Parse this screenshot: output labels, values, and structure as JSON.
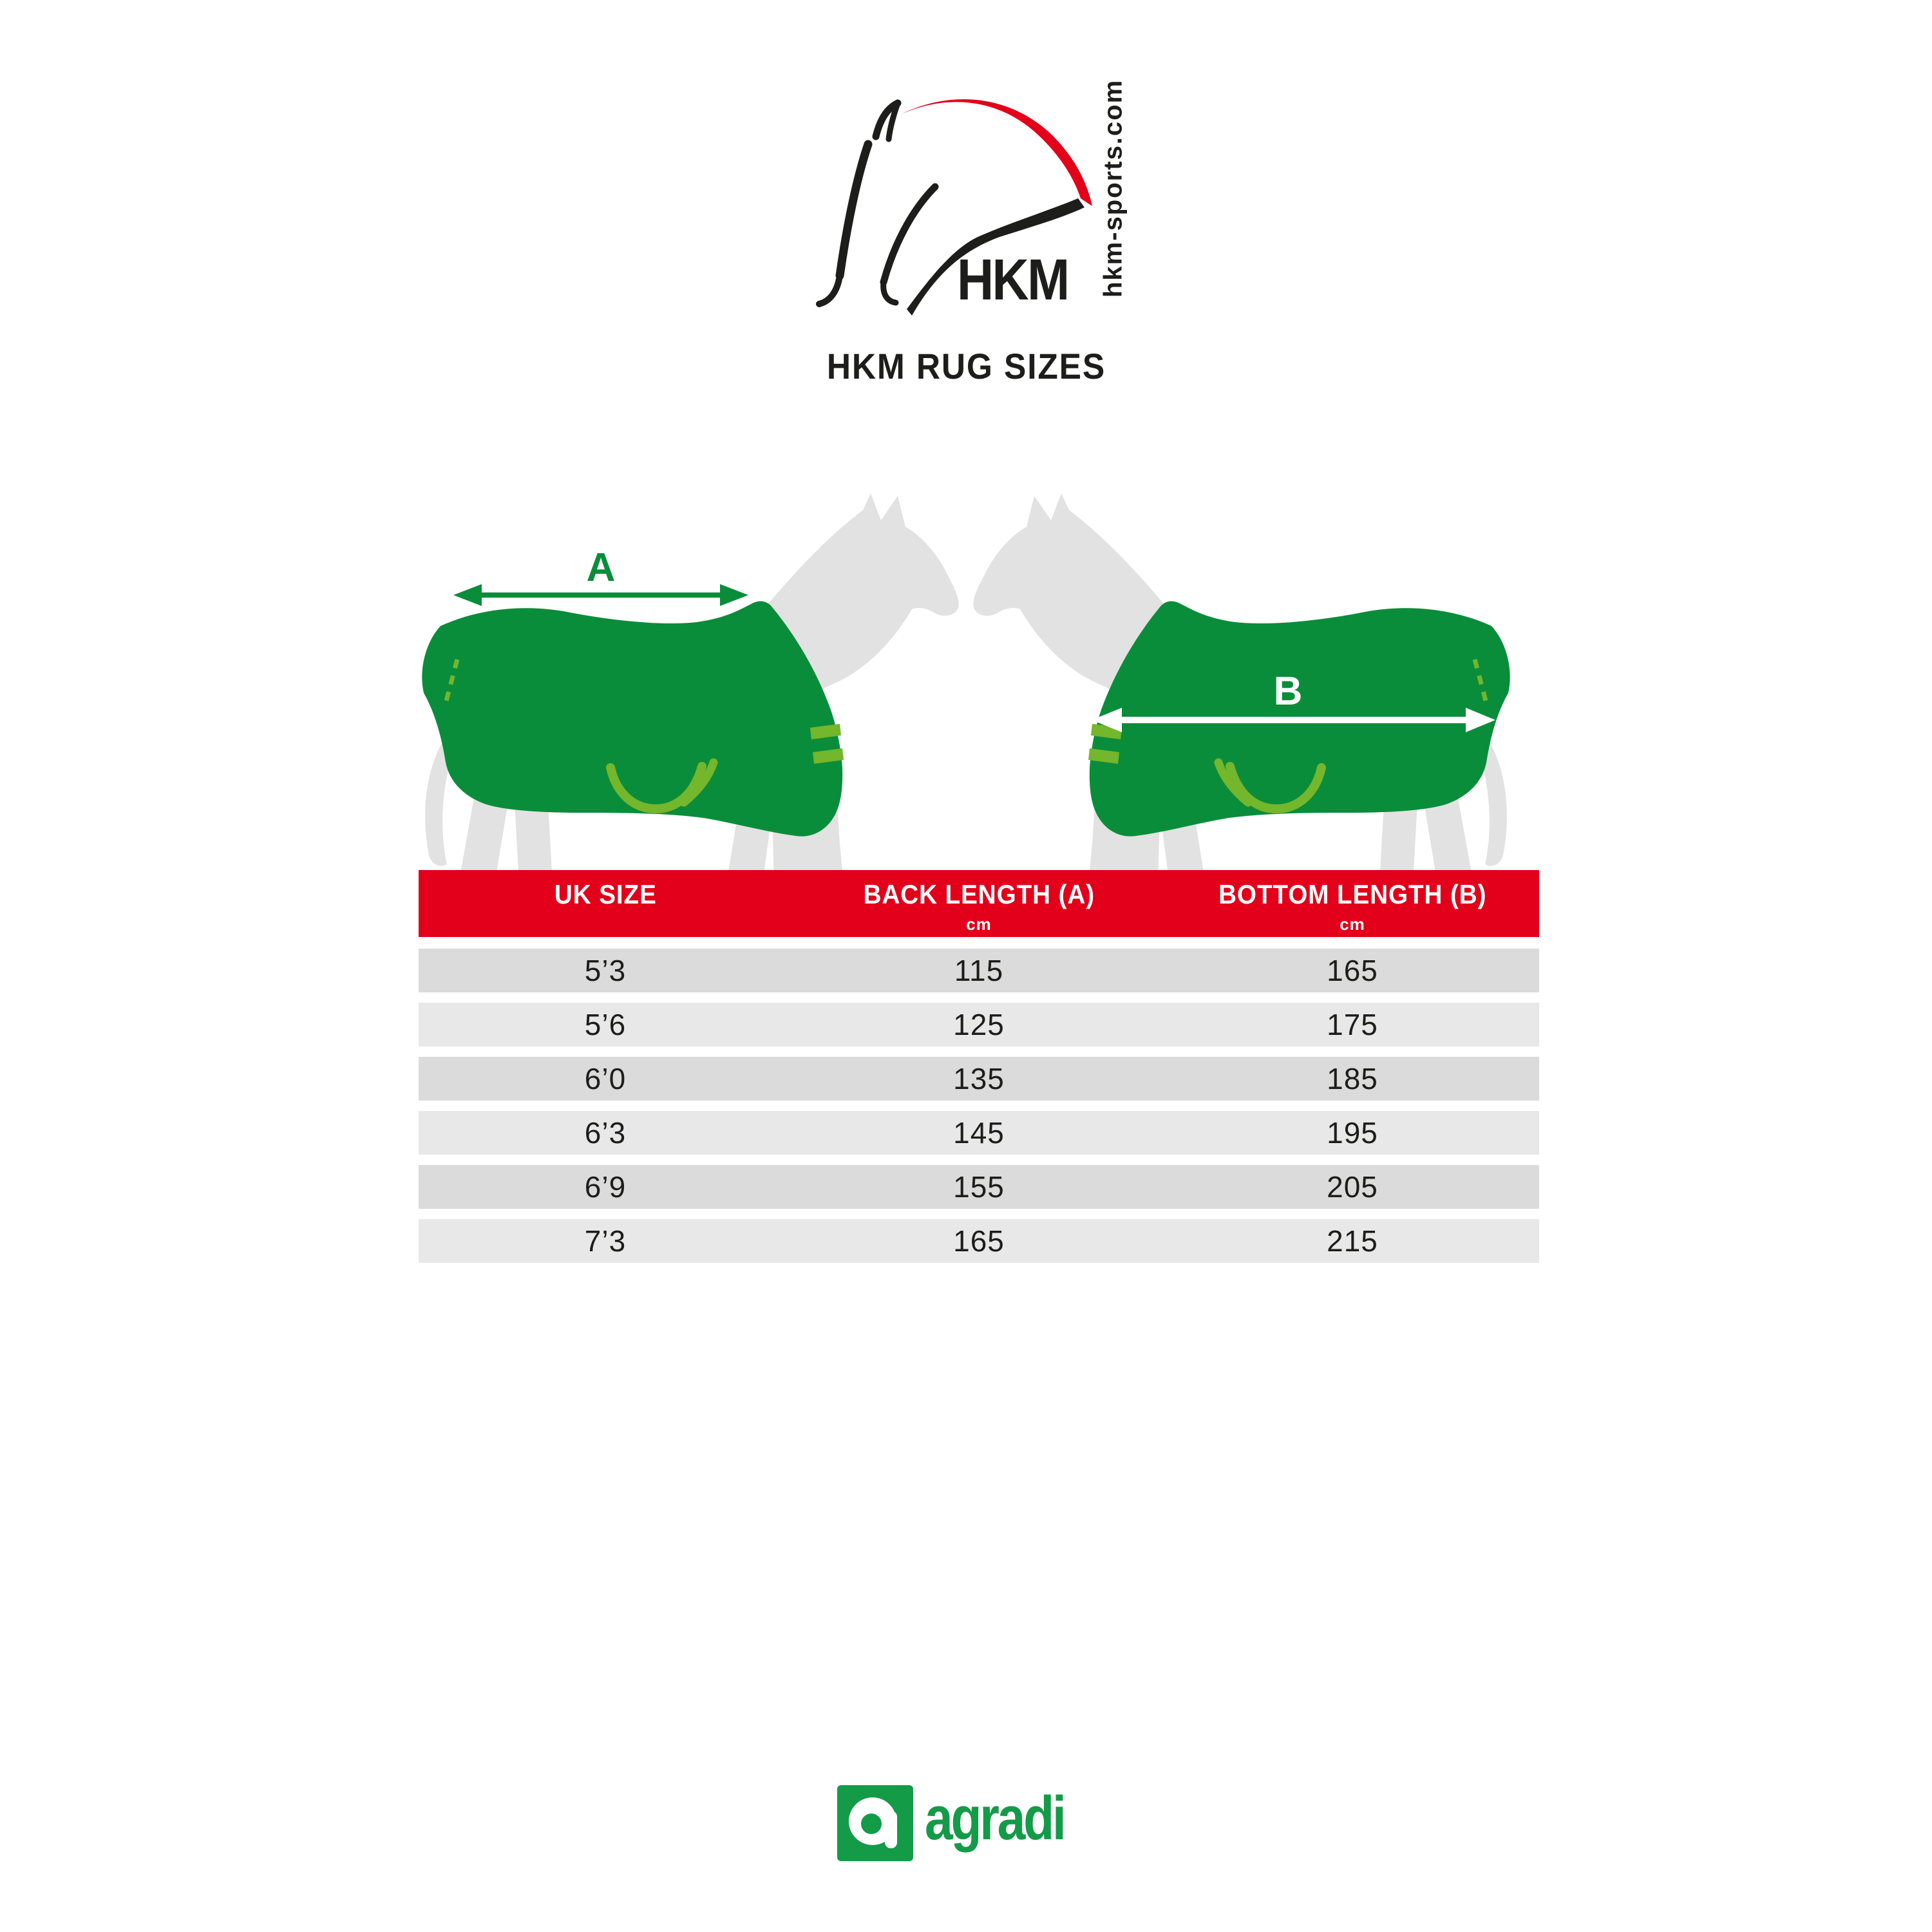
{
  "logo": {
    "brand": "HKM",
    "website": "hkm-sports.com"
  },
  "title": "HKM RUG SIZES",
  "diagram": {
    "back_arrow_label": "A",
    "bottom_arrow_label": "B"
  },
  "table": {
    "columns": [
      {
        "label": "UK SIZE",
        "unit": ""
      },
      {
        "label": "BACK LENGTH (A)",
        "unit": "cm"
      },
      {
        "label": "BOTTOM LENGTH (B)",
        "unit": "cm"
      }
    ],
    "rows": [
      [
        "5’3",
        "115",
        "165"
      ],
      [
        "5’6",
        "125",
        "175"
      ],
      [
        "6’0",
        "135",
        "185"
      ],
      [
        "6’3",
        "145",
        "195"
      ],
      [
        "6’9",
        "155",
        "205"
      ],
      [
        "7’3",
        "165",
        "215"
      ]
    ]
  },
  "footer": {
    "brand": "agradi"
  },
  "colors": {
    "hkm_red": "#e2001a",
    "rug_green": "#0a8d3a",
    "strap_green": "#74b62c",
    "horse_gray": "#e2e2e2",
    "row_dark": "#dbdbdb",
    "row_light": "#e8e8e8",
    "text_black": "#1d1d1b",
    "header_text": "#ffffff",
    "agradi_green": "#149b48"
  }
}
